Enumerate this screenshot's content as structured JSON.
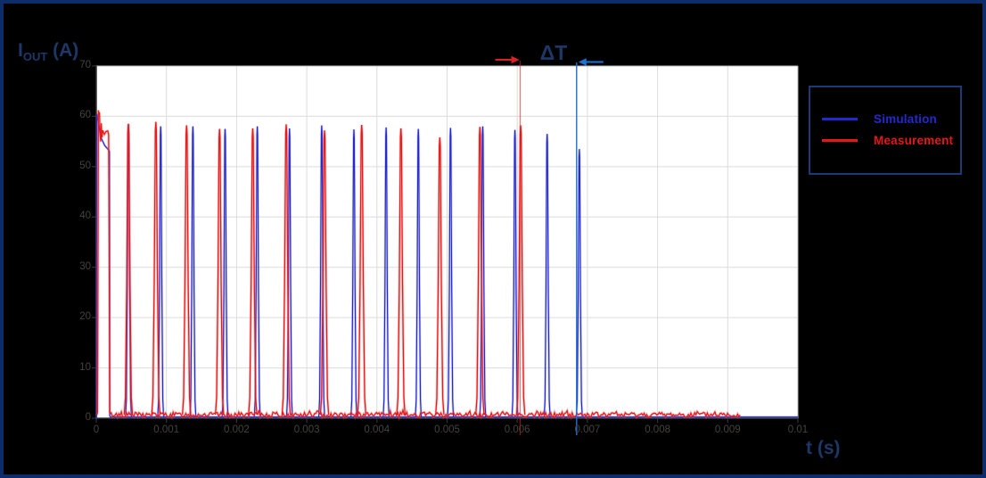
{
  "figure": {
    "background": "#000000",
    "frame_border_color": "#0c2d6a",
    "plot_background": "#ffffff",
    "grid_color": "#dcdcdc",
    "axis_color": "#333333",
    "box_color": "#b5b5b5"
  },
  "axes": {
    "ylabel_main": "I",
    "ylabel_sub": "OUT",
    "ylabel_unit": " (A)",
    "xlabel": "t (s)",
    "label_color": "#1d3767",
    "tick_color": "#45433a",
    "xtick_labels": [
      "0",
      "0.001",
      "0.002",
      "0.003",
      "0.004",
      "0.005",
      "0.006",
      "0.007",
      "0.008",
      "0.009",
      "0.01"
    ],
    "ytick_labels": [
      "0",
      "10",
      "20",
      "30",
      "40",
      "50",
      "60",
      "70"
    ]
  },
  "legend": {
    "border_color": "#1b3a78",
    "items": [
      {
        "label": "Simulation",
        "color": "#2429cd"
      },
      {
        "label": "Measurement",
        "color": "#e51717"
      }
    ]
  },
  "annotation": {
    "text": "ΔT",
    "color": "#1d3767",
    "red_marker_color": "#e02020",
    "blue_marker_color": "#1e72d2"
  },
  "chart_data": {
    "type": "line",
    "title": "",
    "xlabel": "t (s)",
    "ylabel": "I_OUT (A)",
    "xlim_s": [
      0,
      0.01
    ],
    "ylim_A": [
      0,
      70
    ],
    "xtick_step_s": 0.001,
    "ytick_step_A": 10,
    "grid": true,
    "legend_position": "upper-right-outside",
    "pulse_shape": {
      "offsets": [
        -1.4,
        -1.0,
        -0.55,
        -0.17,
        0,
        0.17,
        0.55,
        1.0,
        1.4
      ],
      "fractions": [
        0,
        0.06,
        0.45,
        0.97,
        1,
        0.97,
        0.45,
        0.06,
        0
      ]
    },
    "series": [
      {
        "name": "Simulation",
        "color": "#2429cd",
        "halo_color": "rgba(80,80,225,0.30)",
        "baseline_A": 0.25,
        "first_pulse_points_ms_A": [
          [
            0.0,
            0
          ],
          [
            0.003,
            0
          ],
          [
            0.007,
            60.5
          ],
          [
            0.02,
            59.5
          ],
          [
            0.06,
            56.0
          ],
          [
            0.12,
            54.2
          ],
          [
            0.182,
            53.2
          ],
          [
            0.188,
            53.0
          ],
          [
            0.193,
            0.3
          ]
        ],
        "pulse_times_ms": [
          0.459,
          0.918,
          1.377,
          1.836,
          2.295,
          2.754,
          3.213,
          3.672,
          4.131,
          4.59,
          5.049,
          5.508,
          5.967,
          6.426,
          6.885
        ],
        "pulse_peaks_A": [
          58.5,
          58.0,
          58.0,
          57.5,
          58.0,
          57.6,
          58.2,
          57.4,
          57.8,
          57.5,
          57.7,
          58.0,
          57.3,
          56.5,
          53.5
        ],
        "pulse_half_width_ms": 0.03,
        "data_end_ms": 10.0
      },
      {
        "name": "Measurement",
        "color": "#e81a1a",
        "halo_color": "rgba(242,80,80,0.35)",
        "noise_mean_A": 0.7,
        "noise_amp_A": 1.0,
        "noise_seed": 13,
        "noise_start_ms": 0.195,
        "first_pulse_points_ms_A": [
          [
            0.01,
            0.7
          ],
          [
            0.018,
            1.2
          ],
          [
            0.024,
            30
          ],
          [
            0.03,
            61.2
          ],
          [
            0.038,
            60.3
          ],
          [
            0.045,
            60.8
          ],
          [
            0.055,
            56.2
          ],
          [
            0.063,
            55.0
          ],
          [
            0.071,
            58.6
          ],
          [
            0.08,
            55.8
          ],
          [
            0.092,
            57.2
          ],
          [
            0.115,
            56.4
          ],
          [
            0.14,
            57.0
          ],
          [
            0.163,
            57.1
          ],
          [
            0.176,
            56.4
          ],
          [
            0.184,
            35
          ],
          [
            0.191,
            1.0
          ]
        ],
        "pulse_times_ms": [
          0.457,
          0.849,
          1.287,
          1.757,
          2.23,
          2.707,
          3.253,
          3.783,
          4.342,
          4.896,
          5.468,
          6.049
        ],
        "pulse_peaks_A": [
          58.5,
          58.9,
          58.2,
          57.5,
          57.6,
          58.4,
          57.2,
          58.3,
          57.6,
          55.8,
          57.9,
          58.2
        ],
        "pulse_half_width_ms": 0.042,
        "data_end_ms": 9.19
      }
    ],
    "annotations": {
      "delta_t_label": "ΔT",
      "red_marker_ms": 6.042,
      "blue_marker_ms": 6.846
    }
  }
}
